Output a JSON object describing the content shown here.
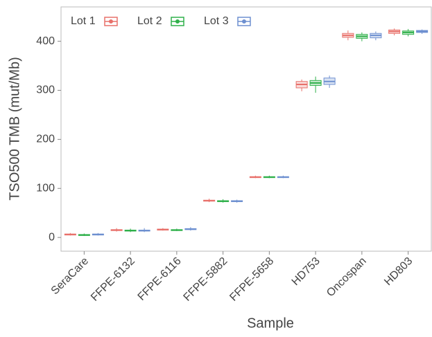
{
  "chart_data": {
    "type": "box",
    "categories": [
      "SeraCare",
      "FFPE-6132",
      "FFPE-6116",
      "FFPE-5882",
      "FFPE-5658",
      "HD753",
      "Oncospan",
      "HD803"
    ],
    "xlabel": "Sample",
    "ylabel": "TSO500 TMB (mut/Mb)",
    "ylim": [
      -28,
      470
    ],
    "yticks": [
      0,
      100,
      200,
      300,
      400
    ],
    "legend": "top-left",
    "series": [
      {
        "name": "Lot 1",
        "color": "#e8706a",
        "min": [
          4,
          12,
          14,
          72,
          121,
          298,
          402,
          412
        ],
        "q1": [
          5,
          14,
          15,
          74,
          122,
          305,
          408,
          416
        ],
        "median": [
          6,
          15,
          16,
          75,
          123,
          312,
          412,
          420
        ],
        "q3": [
          7,
          16,
          17,
          76,
          124,
          318,
          416,
          423
        ],
        "max": [
          9,
          19,
          19,
          79,
          126,
          322,
          422,
          426
        ]
      },
      {
        "name": "Lot 2",
        "color": "#2fb04a",
        "min": [
          3,
          11,
          13,
          71,
          121,
          295,
          400,
          410
        ],
        "q1": [
          4,
          13,
          14,
          73,
          122,
          310,
          406,
          414
        ],
        "median": [
          5,
          14,
          15,
          74,
          123,
          315,
          410,
          418
        ],
        "q3": [
          6,
          15,
          16,
          75,
          124,
          320,
          414,
          421
        ],
        "max": [
          8,
          18,
          18,
          78,
          126,
          328,
          418,
          425
        ]
      },
      {
        "name": "Lot 3",
        "color": "#6d8fd0",
        "min": [
          4,
          11,
          14,
          71,
          121,
          305,
          402,
          415
        ],
        "q1": [
          5,
          13,
          16,
          73,
          122,
          312,
          407,
          418
        ],
        "median": [
          6,
          14,
          17,
          74,
          123,
          318,
          412,
          420
        ],
        "q3": [
          7,
          15,
          18,
          75,
          124,
          325,
          416,
          422
        ],
        "max": [
          9,
          19,
          21,
          77,
          126,
          330,
          420,
          424
        ]
      }
    ]
  }
}
